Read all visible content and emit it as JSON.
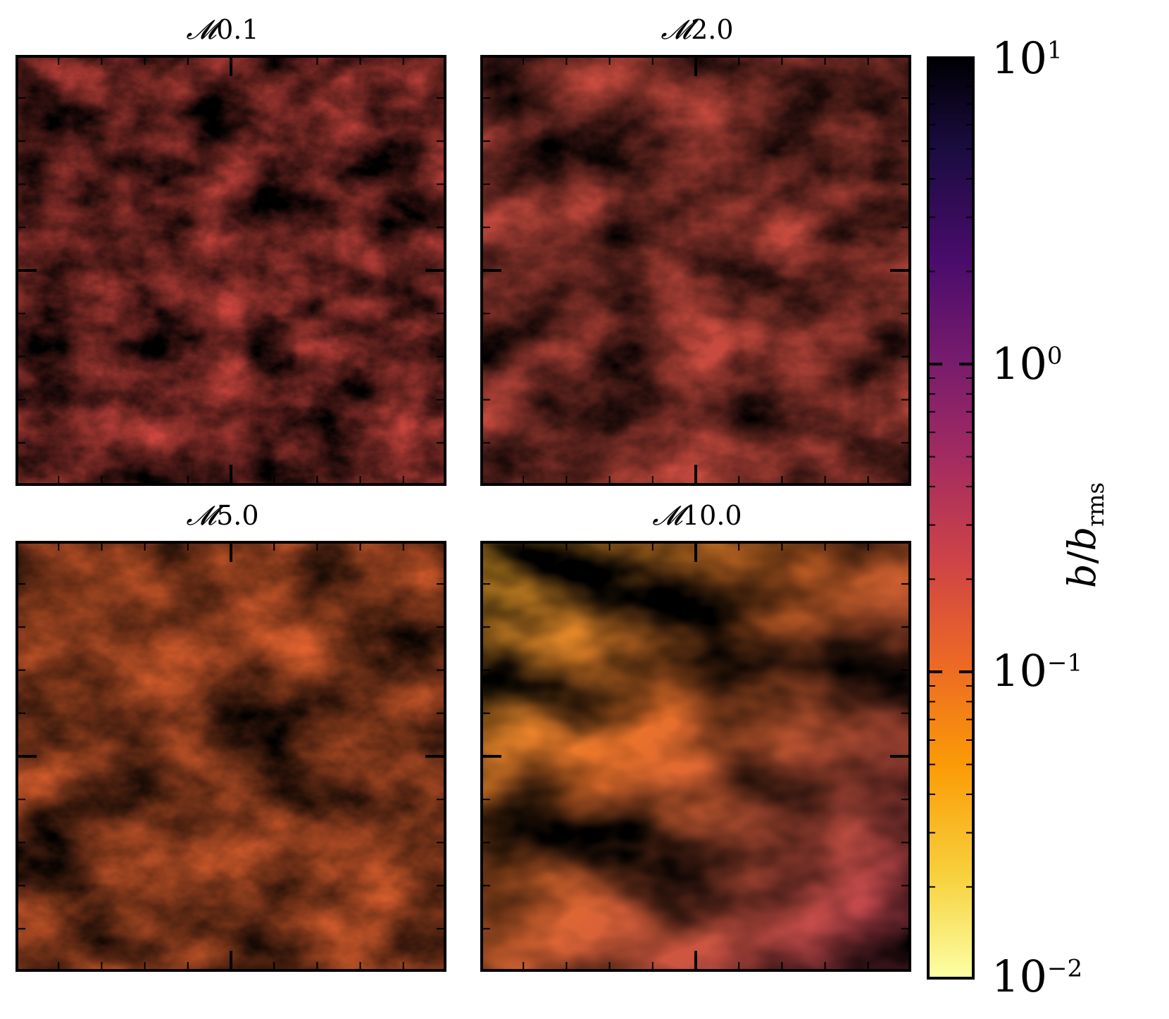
{
  "panels": [
    {
      "title_symbol": "𝓜",
      "title_value": "0.1"
    },
    {
      "title_symbol": "𝓜",
      "title_value": "2.0"
    },
    {
      "title_symbol": "𝓜",
      "title_value": "5.0"
    },
    {
      "title_symbol": "𝓜",
      "title_value": "10.0"
    }
  ],
  "colorbar": {
    "label_b": "b",
    "label_slash": "/",
    "label_brms": "b",
    "label_sub": "rms",
    "ticks": [
      {
        "base": "10",
        "exp": "1"
      },
      {
        "base": "10",
        "exp": "0"
      },
      {
        "base": "10",
        "exp": "−1"
      },
      {
        "base": "10",
        "exp": "−2"
      }
    ],
    "colormap": "inferno-reversed",
    "scale": "log",
    "range": [
      0.01,
      10
    ]
  }
}
